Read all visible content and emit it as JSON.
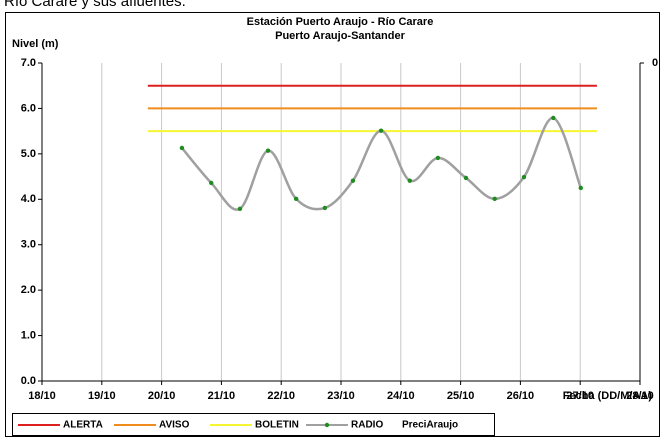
{
  "page_text": "Río Carare y sus afluentes.",
  "chart_data": {
    "type": "line",
    "title": "Estación Puerto Araujo - Río Carare",
    "subtitle": "Puerto Araujo-Santander",
    "ylabel": "Nivel (m)",
    "xlabel": "Fecha (DD/M/AA)",
    "xlim": [
      0,
      10
    ],
    "xticks": [
      {
        "value": 0,
        "label": "18/10"
      },
      {
        "value": 1,
        "label": "19/10"
      },
      {
        "value": 2,
        "label": "20/10"
      },
      {
        "value": 3,
        "label": "21/10"
      },
      {
        "value": 4,
        "label": "22/10"
      },
      {
        "value": 5,
        "label": "23/10"
      },
      {
        "value": 6,
        "label": "24/10"
      },
      {
        "value": 7,
        "label": "25/10"
      },
      {
        "value": 8,
        "label": "26/10"
      },
      {
        "value": 9,
        "label": "27/10"
      },
      {
        "value": 10,
        "label": "28/10"
      }
    ],
    "ylim": [
      0,
      7
    ],
    "yticks": [
      {
        "value": 0,
        "label": "0.0"
      },
      {
        "value": 1,
        "label": "1.0"
      },
      {
        "value": 2,
        "label": "2.0"
      },
      {
        "value": 3,
        "label": "3.0"
      },
      {
        "value": 4,
        "label": "4.0"
      },
      {
        "value": 5,
        "label": "5.0"
      },
      {
        "value": 6,
        "label": "6.0"
      },
      {
        "value": 7,
        "label": "7.0"
      }
    ],
    "y2ticks": [
      0
    ],
    "grid": "x",
    "legend": "bottom",
    "series": [
      {
        "name": "ALERTA",
        "color": "#dd1f1f",
        "x": [
          1.77,
          9.28
        ],
        "values": [
          6.5,
          6.5
        ]
      },
      {
        "name": "AVISO",
        "color": "#f08c1e",
        "x": [
          1.77,
          9.28
        ],
        "values": [
          6.0,
          6.0
        ]
      },
      {
        "name": "BOLETIN",
        "color": "#f5f532",
        "x": [
          1.77,
          9.28
        ],
        "values": [
          5.5,
          5.5
        ]
      },
      {
        "name": "RADIO",
        "color": "#a0a0a0",
        "marker_color": "#1e8c1e",
        "smooth": true,
        "x": [
          2.34,
          2.83,
          3.31,
          3.78,
          4.25,
          4.73,
          5.2,
          5.67,
          6.15,
          6.62,
          7.09,
          7.57,
          8.06,
          8.55,
          9.01
        ],
        "values": [
          5.13,
          4.36,
          3.79,
          5.07,
          4.01,
          3.81,
          4.41,
          5.51,
          4.41,
          4.91,
          4.47,
          4.01,
          4.49,
          5.79,
          4.25
        ]
      },
      {
        "name": "PreciAraujo",
        "axis": "y2",
        "x": [],
        "values": []
      }
    ]
  }
}
